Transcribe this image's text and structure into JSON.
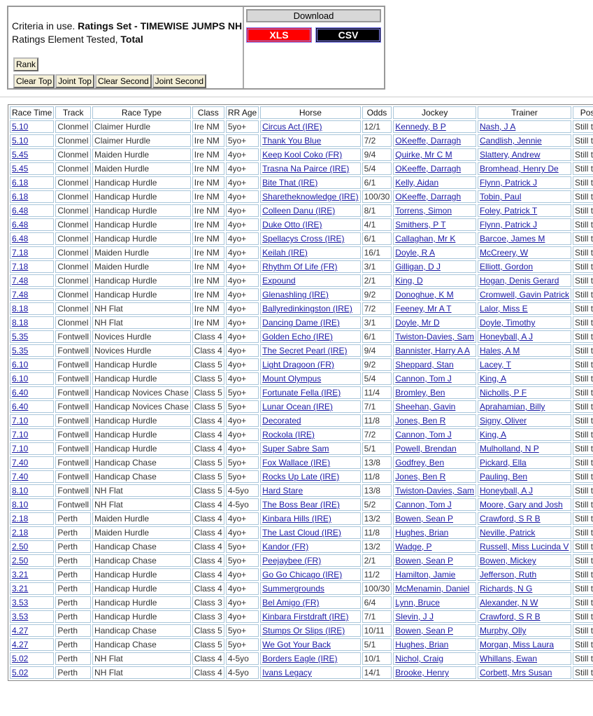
{
  "criteria": {
    "label": "Criteria in use.",
    "ratings_set": "Ratings Set - TIMEWISE JUMPS NH",
    "element_label": "Ratings Element Tested,",
    "element": "Total"
  },
  "buttons": {
    "rank": "Rank",
    "clear_top": "Clear Top",
    "joint_top": "Joint Top",
    "clear_second": "Clear Second",
    "joint_second": "Joint Second"
  },
  "download": {
    "title": "Download",
    "xls": "XLS",
    "csv": "CSV"
  },
  "table": {
    "headers": [
      "Race Time",
      "Track",
      "Race Type",
      "Class",
      "RR Age",
      "Horse",
      "Odds",
      "Jockey",
      "Trainer",
      "Position"
    ],
    "rows": [
      [
        "5.10",
        "Clonmel",
        "Claimer Hurdle",
        "Ire NM",
        "5yo+",
        "Circus Act (IRE)",
        "12/1",
        "Kennedy, B P",
        "Nash, J A",
        "Still to Run"
      ],
      [
        "5.10",
        "Clonmel",
        "Claimer Hurdle",
        "Ire NM",
        "5yo+",
        "Thank You Blue",
        "7/2",
        "OKeeffe, Darragh",
        "Candlish, Jennie",
        "Still to Run"
      ],
      [
        "5.45",
        "Clonmel",
        "Maiden Hurdle",
        "Ire NM",
        "4yo+",
        "Keep Kool Coko (FR)",
        "9/4",
        "Quirke, Mr C M",
        "Slattery, Andrew",
        "Still to Run"
      ],
      [
        "5.45",
        "Clonmel",
        "Maiden Hurdle",
        "Ire NM",
        "4yo+",
        "Trasna Na Pairce (IRE)",
        "5/4",
        "OKeeffe, Darragh",
        "Bromhead, Henry De",
        "Still to Run"
      ],
      [
        "6.18",
        "Clonmel",
        "Handicap Hurdle",
        "Ire NM",
        "4yo+",
        "Bite That (IRE)",
        "6/1",
        "Kelly, Aidan",
        "Flynn, Patrick J",
        "Still to Run"
      ],
      [
        "6.18",
        "Clonmel",
        "Handicap Hurdle",
        "Ire NM",
        "4yo+",
        "Sharetheknowledge (IRE)",
        "100/30",
        "OKeeffe, Darragh",
        "Tobin, Paul",
        "Still to Run"
      ],
      [
        "6.48",
        "Clonmel",
        "Handicap Hurdle",
        "Ire NM",
        "4yo+",
        "Colleen Danu (IRE)",
        "8/1",
        "Torrens, Simon",
        "Foley, Patrick T",
        "Still to Run"
      ],
      [
        "6.48",
        "Clonmel",
        "Handicap Hurdle",
        "Ire NM",
        "4yo+",
        "Duke Otto (IRE)",
        "4/1",
        "Smithers, P T",
        "Flynn, Patrick J",
        "Still to Run"
      ],
      [
        "6.48",
        "Clonmel",
        "Handicap Hurdle",
        "Ire NM",
        "4yo+",
        "Spellacys Cross (IRE)",
        "6/1",
        "Callaghan, Mr K",
        "Barcoe, James M",
        "Still to Run"
      ],
      [
        "7.18",
        "Clonmel",
        "Maiden Hurdle",
        "Ire NM",
        "4yo+",
        "Keilah (IRE)",
        "16/1",
        "Doyle, R A",
        "McCreery, W",
        "Still to Run"
      ],
      [
        "7.18",
        "Clonmel",
        "Maiden Hurdle",
        "Ire NM",
        "4yo+",
        "Rhythm Of Life (FR)",
        "3/1",
        "Gilligan, D J",
        "Elliott, Gordon",
        "Still to Run"
      ],
      [
        "7.48",
        "Clonmel",
        "Handicap Hurdle",
        "Ire NM",
        "4yo+",
        "Expound",
        "2/1",
        "King, D",
        "Hogan, Denis Gerard",
        "Still to Run"
      ],
      [
        "7.48",
        "Clonmel",
        "Handicap Hurdle",
        "Ire NM",
        "4yo+",
        "Glenashling (IRE)",
        "9/2",
        "Donoghue, K M",
        "Cromwell, Gavin Patrick",
        "Still to Run"
      ],
      [
        "8.18",
        "Clonmel",
        "NH Flat",
        "Ire NM",
        "4yo+",
        "Ballyredinkingston (IRE)",
        "7/2",
        "Feeney, Mr A T",
        "Lalor, Miss E",
        "Still to Run"
      ],
      [
        "8.18",
        "Clonmel",
        "NH Flat",
        "Ire NM",
        "4yo+",
        "Dancing Dame (IRE)",
        "3/1",
        "Doyle, Mr D",
        "Doyle, Timothy",
        "Still to Run"
      ],
      [
        "5.35",
        "Fontwell",
        "Novices Hurdle",
        "Class 4",
        "4yo+",
        "Golden Echo (IRE)",
        "6/1",
        "Twiston-Davies, Sam",
        "Honeyball, A J",
        "Still to Run"
      ],
      [
        "5.35",
        "Fontwell",
        "Novices Hurdle",
        "Class 4",
        "4yo+",
        "The Secret Pearl (IRE)",
        "9/4",
        "Bannister, Harry A A",
        "Hales, A M",
        "Still to Run"
      ],
      [
        "6.10",
        "Fontwell",
        "Handicap Hurdle",
        "Class 5",
        "4yo+",
        "Light Dragoon (FR)",
        "9/2",
        "Sheppard, Stan",
        "Lacey, T",
        "Still to Run"
      ],
      [
        "6.10",
        "Fontwell",
        "Handicap Hurdle",
        "Class 5",
        "4yo+",
        "Mount Olympus",
        "5/4",
        "Cannon, Tom J",
        "King, A",
        "Still to Run"
      ],
      [
        "6.40",
        "Fontwell",
        "Handicap Novices Chase",
        "Class 5",
        "5yo+",
        "Fortunate Fella (IRE)",
        "11/4",
        "Bromley, Ben",
        "Nicholls, P F",
        "Still to Run"
      ],
      [
        "6.40",
        "Fontwell",
        "Handicap Novices Chase",
        "Class 5",
        "5yo+",
        "Lunar Ocean (IRE)",
        "7/1",
        "Sheehan, Gavin",
        "Aprahamian, Billy",
        "Still to Run"
      ],
      [
        "7.10",
        "Fontwell",
        "Handicap Hurdle",
        "Class 4",
        "4yo+",
        "Decorated",
        "11/8",
        "Jones, Ben R",
        "Signy, Oliver",
        "Still to Run"
      ],
      [
        "7.10",
        "Fontwell",
        "Handicap Hurdle",
        "Class 4",
        "4yo+",
        "Rockola (IRE)",
        "7/2",
        "Cannon, Tom J",
        "King, A",
        "Still to Run"
      ],
      [
        "7.10",
        "Fontwell",
        "Handicap Hurdle",
        "Class 4",
        "4yo+",
        "Super Sabre Sam",
        "5/1",
        "Powell, Brendan",
        "Mulholland, N P",
        "Still to Run"
      ],
      [
        "7.40",
        "Fontwell",
        "Handicap Chase",
        "Class 5",
        "5yo+",
        "Fox Wallace (IRE)",
        "13/8",
        "Godfrey, Ben",
        "Pickard, Ella",
        "Still to Run"
      ],
      [
        "7.40",
        "Fontwell",
        "Handicap Chase",
        "Class 5",
        "5yo+",
        "Rocks Up Late (IRE)",
        "11/8",
        "Jones, Ben R",
        "Pauling, Ben",
        "Still to Run"
      ],
      [
        "8.10",
        "Fontwell",
        "NH Flat",
        "Class 5",
        "4-5yo",
        "Hard Stare",
        "13/8",
        "Twiston-Davies, Sam",
        "Honeyball, A J",
        "Still to Run"
      ],
      [
        "8.10",
        "Fontwell",
        "NH Flat",
        "Class 4",
        "4-5yo",
        "The Boss Bear (IRE)",
        "5/2",
        "Cannon, Tom J",
        "Moore, Gary and Josh",
        "Still to Run"
      ],
      [
        "2.18",
        "Perth",
        "Maiden Hurdle",
        "Class 4",
        "4yo+",
        "Kinbara Hills (IRE)",
        "13/2",
        "Bowen, Sean P",
        "Crawford, S R B",
        "Still to Run"
      ],
      [
        "2.18",
        "Perth",
        "Maiden Hurdle",
        "Class 4",
        "4yo+",
        "The Last Cloud (IRE)",
        "11/8",
        "Hughes, Brian",
        "Neville, Patrick",
        "Still to Run"
      ],
      [
        "2.50",
        "Perth",
        "Handicap Chase",
        "Class 4",
        "5yo+",
        "Kandor (FR)",
        "13/2",
        "Wadge, P",
        "Russell, Miss Lucinda V",
        "Still to Run"
      ],
      [
        "2.50",
        "Perth",
        "Handicap Chase",
        "Class 4",
        "5yo+",
        "Peejaybee (FR)",
        "2/1",
        "Bowen, Sean P",
        "Bowen, Mickey",
        "Still to Run"
      ],
      [
        "3.21",
        "Perth",
        "Handicap Hurdle",
        "Class 4",
        "4yo+",
        "Go Go Chicago (IRE)",
        "11/2",
        "Hamilton, Jamie",
        "Jefferson, Ruth",
        "Still to Run"
      ],
      [
        "3.21",
        "Perth",
        "Handicap Hurdle",
        "Class 4",
        "4yo+",
        "Summergrounds",
        "100/30",
        "McMenamin, Daniel",
        "Richards, N G",
        "Still to Run"
      ],
      [
        "3.53",
        "Perth",
        "Handicap Hurdle",
        "Class 3",
        "4yo+",
        "Bel Amigo (FR)",
        "6/4",
        "Lynn, Bruce",
        "Alexander, N W",
        "Still to Run"
      ],
      [
        "3.53",
        "Perth",
        "Handicap Hurdle",
        "Class 3",
        "4yo+",
        "Kinbara Firstdraft (IRE)",
        "7/1",
        "Slevin, J J",
        "Crawford, S R B",
        "Still to Run"
      ],
      [
        "4.27",
        "Perth",
        "Handicap Chase",
        "Class 5",
        "5yo+",
        "Stumps Or Slips (IRE)",
        "10/11",
        "Bowen, Sean P",
        "Murphy, Olly",
        "Still to Run"
      ],
      [
        "4.27",
        "Perth",
        "Handicap Chase",
        "Class 5",
        "5yo+",
        "We Got Your Back",
        "5/1",
        "Hughes, Brian",
        "Morgan, Miss Laura",
        "Still to Run"
      ],
      [
        "5.02",
        "Perth",
        "NH Flat",
        "Class 4",
        "4-5yo",
        "Borders Eagle (IRE)",
        "10/1",
        "Nichol, Craig",
        "Whillans, Ewan",
        "Still to Run"
      ],
      [
        "5.02",
        "Perth",
        "NH Flat",
        "Class 4",
        "4-5yo",
        "Ivans Legacy",
        "14/1",
        "Brooke, Henry",
        "Corbett, Mrs Susan",
        "Still to Run"
      ]
    ]
  }
}
